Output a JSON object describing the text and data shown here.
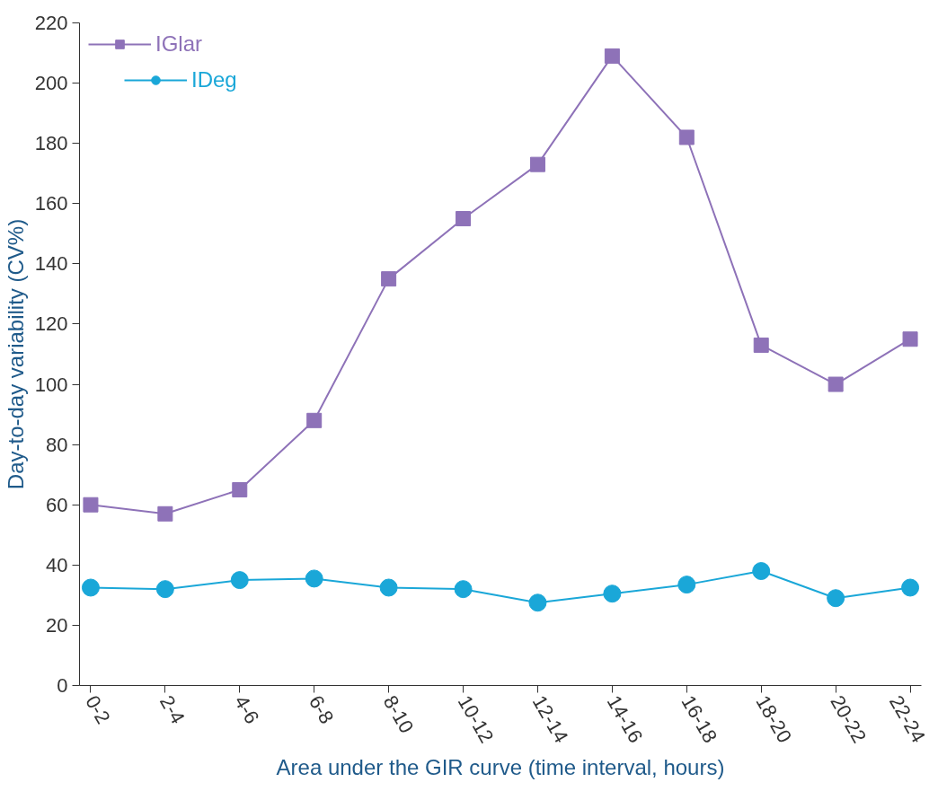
{
  "chart_data": {
    "type": "line",
    "xlabel": "Area under the GIR curve (time interval, hours)",
    "ylabel": "Day-to-day variability (CV%)",
    "categories": [
      "0-2",
      "2-4",
      "4-6",
      "6-8",
      "8-10",
      "10-12",
      "12-14",
      "14-16",
      "16-18",
      "18-20",
      "20-22",
      "22-24"
    ],
    "series": [
      {
        "name": "IGlar",
        "color": "#8e72b8",
        "marker": "square",
        "values": [
          60,
          57,
          65,
          88,
          135,
          155,
          173,
          209,
          182,
          113,
          100,
          115
        ]
      },
      {
        "name": "IDeg",
        "color": "#1aa7d8",
        "marker": "circle",
        "values": [
          32.5,
          32,
          35,
          35.5,
          32.5,
          32,
          27.5,
          30.5,
          33.5,
          38,
          29,
          32.5
        ]
      }
    ],
    "ylim": [
      0,
      220
    ],
    "yticks": [
      0,
      20,
      40,
      60,
      80,
      100,
      120,
      140,
      160,
      180,
      200,
      220
    ],
    "grid": false,
    "legend": "top left"
  }
}
